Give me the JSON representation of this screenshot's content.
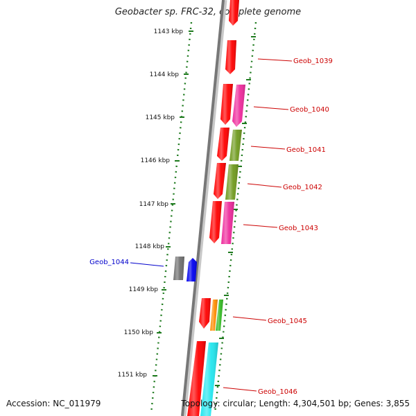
{
  "title": "Geobacter sp. FRC-32, complete genome",
  "footer": {
    "accession": "Accession: NC_011979",
    "summary": "Topology: circular; Length: 4,304,501 bp; Genes: 3,855"
  },
  "colors": {
    "backbone": "#7a7a7a",
    "tick": "#1e7a1e",
    "forward_label": "#cc0000",
    "reverse_label": "#0000cc",
    "red": "#ff0000",
    "magenta": "#ee2a9c",
    "olive": "#6f9a1e",
    "gray": "#6f6f6f",
    "blue": "#0000ee",
    "orange": "#ff8c00",
    "green": "#33bb22",
    "cyan": "#22e6ee"
  },
  "scale_labels": [
    "1143 kbp",
    "1144 kbp",
    "1145 kbp",
    "1146 kbp",
    "1147 kbp",
    "1148 kbp",
    "1149 kbp",
    "1150 kbp",
    "1151 kbp"
  ],
  "gene_labels": [
    {
      "text": "Geob_1039",
      "strand": "forward"
    },
    {
      "text": "Geob_1040",
      "strand": "forward"
    },
    {
      "text": "Geob_1041",
      "strand": "forward"
    },
    {
      "text": "Geob_1042",
      "strand": "forward"
    },
    {
      "text": "Geob_1043",
      "strand": "forward"
    },
    {
      "text": "Geob_1044",
      "strand": "reverse"
    },
    {
      "text": "Geob_1045",
      "strand": "forward"
    },
    {
      "text": "Geob_1046",
      "strand": "forward"
    }
  ]
}
